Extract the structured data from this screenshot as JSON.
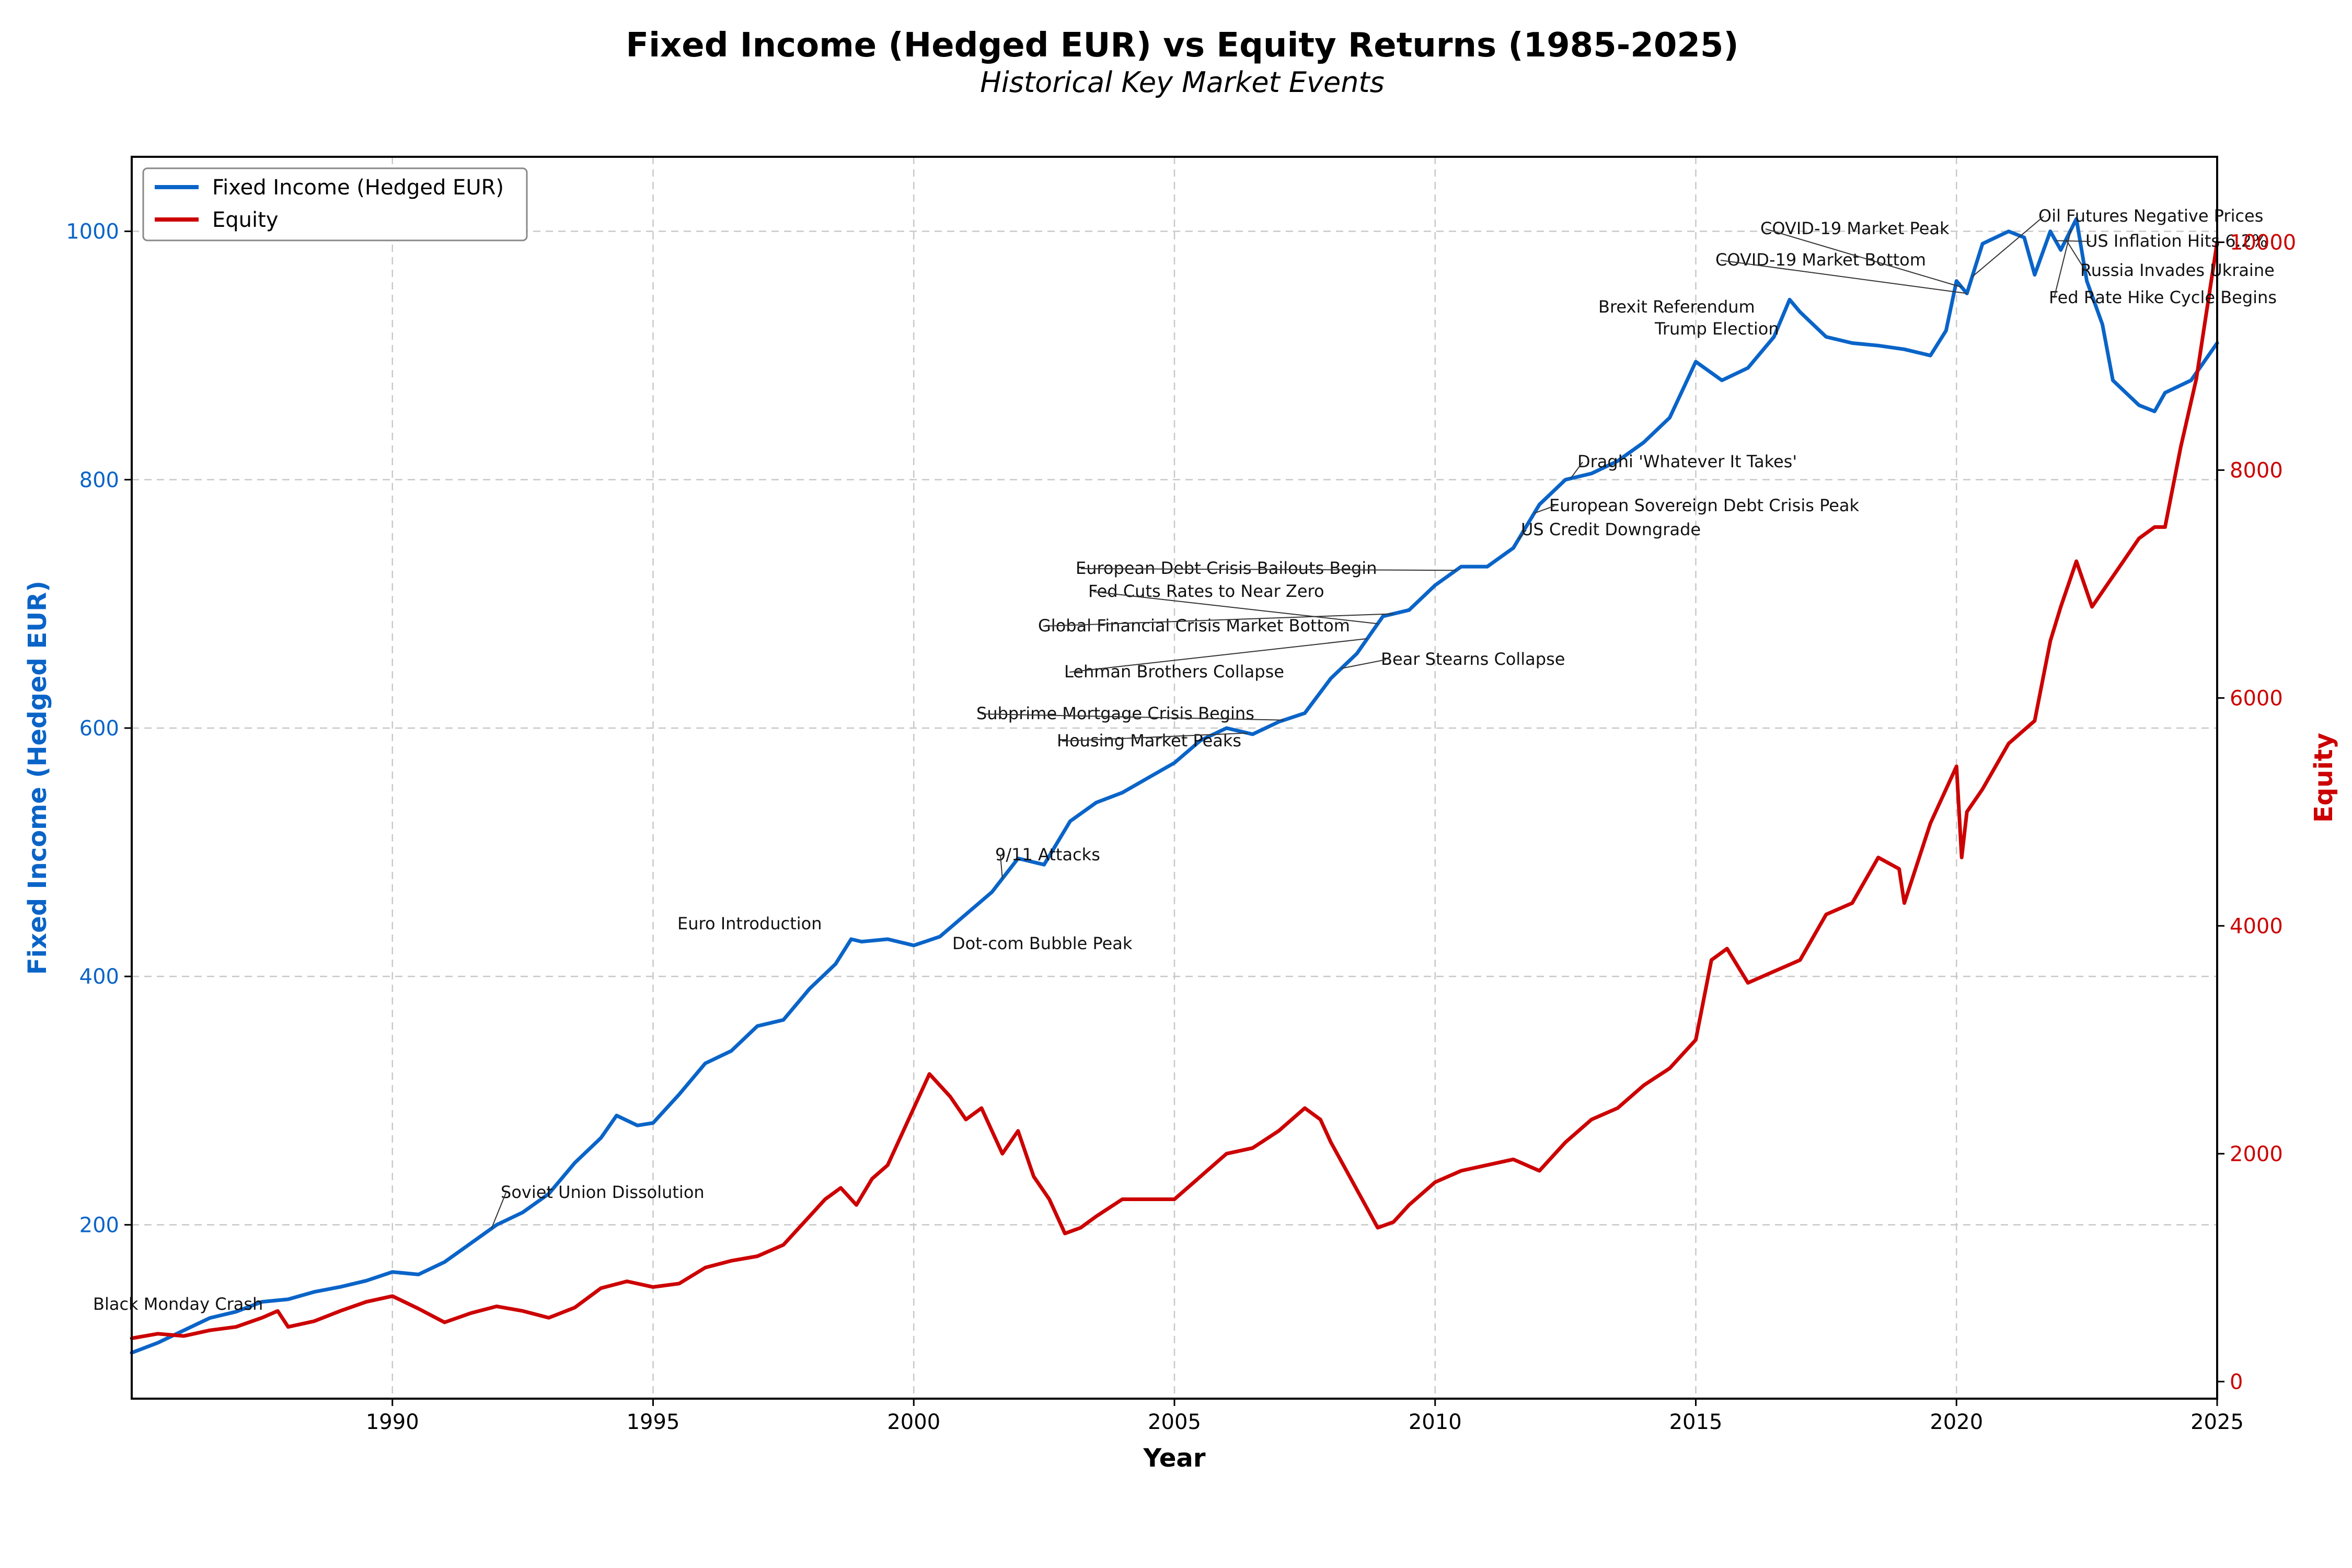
{
  "chart_data": {
    "type": "line",
    "title": "Fixed Income (Hedged EUR) vs Equity Returns (1985-2025)",
    "subtitle": "Historical Key Market Events",
    "xlabel": "Year",
    "ylabel_left": "Fixed Income (Hedged EUR)",
    "ylabel_right": "Equity",
    "xlim": [
      1985,
      2025
    ],
    "ylim_left": [
      60,
      1060
    ],
    "ylim_right": [
      -150,
      10750
    ],
    "x_ticks": [
      "1990",
      "1995",
      "2000",
      "2005",
      "2010",
      "2015",
      "2020",
      "2025"
    ],
    "y_ticks_left": [
      "200",
      "400",
      "600",
      "800",
      "1000"
    ],
    "y_ticks_right": [
      "0",
      "2000",
      "4000",
      "6000",
      "8000",
      "10000"
    ],
    "grid": true,
    "legend_position": "top-left",
    "colors": {
      "fixed_income": "#0a64c8",
      "equity": "#cc0000"
    },
    "series": [
      {
        "name": "Fixed Income (Hedged EUR)",
        "axis": "left",
        "x": [
          1985.0,
          1985.5,
          1986.0,
          1986.5,
          1987.0,
          1987.5,
          1988.0,
          1988.5,
          1989.0,
          1989.5,
          1990.0,
          1990.5,
          1991.0,
          1991.5,
          1992.0,
          1992.5,
          1993.0,
          1993.5,
          1994.0,
          1994.3,
          1994.7,
          1995.0,
          1995.5,
          1996.0,
          1996.5,
          1997.0,
          1997.5,
          1998.0,
          1998.5,
          1998.8,
          1999.0,
          1999.5,
          2000.0,
          2000.5,
          2001.0,
          2001.5,
          2002.0,
          2002.5,
          2003.0,
          2003.5,
          2004.0,
          2004.5,
          2005.0,
          2005.5,
          2006.0,
          2006.5,
          2007.0,
          2007.5,
          2008.0,
          2008.5,
          2009.0,
          2009.5,
          2010.0,
          2010.5,
          2011.0,
          2011.5,
          2012.0,
          2012.5,
          2013.0,
          2013.5,
          2014.0,
          2014.5,
          2015.0,
          2015.5,
          2016.0,
          2016.5,
          2016.8,
          2017.0,
          2017.5,
          2018.0,
          2018.5,
          2019.0,
          2019.5,
          2019.8,
          2020.0,
          2020.2,
          2020.5,
          2021.0,
          2021.3,
          2021.5,
          2021.8,
          2022.0,
          2022.3,
          2022.5,
          2022.8,
          2023.0,
          2023.5,
          2023.8,
          2024.0,
          2024.5,
          2025.0
        ],
        "values": [
          97,
          105,
          115,
          125,
          130,
          138,
          140,
          146,
          150,
          155,
          162,
          160,
          170,
          185,
          200,
          210,
          225,
          250,
          270,
          288,
          280,
          282,
          305,
          330,
          340,
          360,
          365,
          390,
          410,
          430,
          428,
          430,
          425,
          432,
          450,
          468,
          495,
          490,
          525,
          540,
          548,
          560,
          572,
          590,
          600,
          595,
          605,
          612,
          640,
          660,
          690,
          695,
          715,
          730,
          730,
          745,
          780,
          800,
          805,
          815,
          830,
          850,
          895,
          880,
          890,
          915,
          945,
          935,
          915,
          910,
          908,
          905,
          900,
          920,
          960,
          950,
          990,
          1000,
          995,
          965,
          1000,
          985,
          1010,
          960,
          925,
          880,
          860,
          855,
          870,
          880,
          910
        ]
      },
      {
        "name": "Equity",
        "axis": "right",
        "x": [
          1985.0,
          1985.5,
          1986.0,
          1986.5,
          1987.0,
          1987.5,
          1987.8,
          1988.0,
          1988.5,
          1989.0,
          1989.5,
          1990.0,
          1990.5,
          1991.0,
          1991.5,
          1992.0,
          1992.5,
          1993.0,
          1993.5,
          1994.0,
          1994.5,
          1995.0,
          1995.5,
          1996.0,
          1996.5,
          1997.0,
          1997.5,
          1998.0,
          1998.3,
          1998.6,
          1998.9,
          1999.2,
          1999.5,
          2000.0,
          2000.3,
          2000.7,
          2001.0,
          2001.3,
          2001.7,
          2002.0,
          2002.3,
          2002.6,
          2002.9,
          2003.2,
          2003.5,
          2004.0,
          2004.5,
          2005.0,
          2005.5,
          2006.0,
          2006.5,
          2007.0,
          2007.5,
          2007.8,
          2008.0,
          2008.3,
          2008.6,
          2008.9,
          2009.2,
          2009.5,
          2010.0,
          2010.5,
          2011.0,
          2011.5,
          2012.0,
          2012.5,
          2013.0,
          2013.5,
          2014.0,
          2014.5,
          2015.0,
          2015.3,
          2015.6,
          2016.0,
          2016.5,
          2017.0,
          2017.5,
          2018.0,
          2018.5,
          2018.9,
          2019.0,
          2019.5,
          2020.0,
          2020.1,
          2020.2,
          2020.5,
          2021.0,
          2021.5,
          2021.8,
          2022.0,
          2022.3,
          2022.6,
          2022.9,
          2023.2,
          2023.5,
          2023.8,
          2024.0,
          2024.3,
          2024.6,
          2025.0
        ],
        "values": [
          380,
          420,
          400,
          450,
          480,
          560,
          620,
          480,
          530,
          620,
          700,
          750,
          640,
          520,
          600,
          660,
          620,
          560,
          650,
          820,
          880,
          830,
          860,
          1000,
          1060,
          1100,
          1200,
          1450,
          1600,
          1700,
          1550,
          1780,
          1900,
          2400,
          2700,
          2500,
          2300,
          2400,
          2000,
          2200,
          1800,
          1600,
          1300,
          1350,
          1450,
          1600,
          1600,
          1600,
          1800,
          2000,
          2050,
          2200,
          2400,
          2300,
          2100,
          1850,
          1600,
          1350,
          1400,
          1550,
          1750,
          1850,
          1900,
          1950,
          1850,
          2100,
          2300,
          2400,
          2600,
          2750,
          3000,
          3700,
          3800,
          3500,
          3600,
          3700,
          4100,
          4200,
          4600,
          4500,
          4200,
          4900,
          5400,
          4600,
          5000,
          5200,
          5600,
          5800,
          6500,
          6800,
          7200,
          6800,
          7000,
          7200,
          7400,
          7500,
          7500,
          8200,
          8800,
          10000
        ]
      }
    ],
    "annotations": [
      {
        "label": "Black Monday Crash",
        "x": 1987.8
      },
      {
        "label": "Soviet Union Dissolution",
        "x": 1991.9
      },
      {
        "label": "Euro Introduction",
        "x": 1999.0
      },
      {
        "label": "Dot-com Bubble Peak",
        "x": 2000.2
      },
      {
        "label": "9/11 Attacks",
        "x": 2001.7
      },
      {
        "label": "Housing Market Peaks",
        "x": 2006.4
      },
      {
        "label": "Subprime Mortgage Crisis Begins",
        "x": 2007.1
      },
      {
        "label": "Lehman Brothers Collapse",
        "x": 2008.7
      },
      {
        "label": "Bear Stearns Collapse",
        "x": 2008.2
      },
      {
        "label": "Global Financial Crisis Market Bottom",
        "x": 2009.2
      },
      {
        "label": "Fed Cuts Rates to Near Zero",
        "x": 2008.9
      },
      {
        "label": "European Debt Crisis Bailouts Begin",
        "x": 2010.4
      },
      {
        "label": "US Credit Downgrade",
        "x": 2011.6
      },
      {
        "label": "European Sovereign Debt Crisis Peak",
        "x": 2011.9
      },
      {
        "label": "Draghi 'Whatever It Takes'",
        "x": 2012.6
      },
      {
        "label": "Brexit Referendum",
        "x": 2016.5
      },
      {
        "label": "Trump Election",
        "x": 2016.9
      },
      {
        "label": "COVID-19 Market Bottom",
        "x": 2020.2
      },
      {
        "label": "COVID-19 Market Peak",
        "x": 2020.1
      },
      {
        "label": "Oil Futures Negative Prices",
        "x": 2020.3
      },
      {
        "label": "US Inflation Hits 6.2%",
        "x": 2021.9
      },
      {
        "label": "Russia Invades Ukraine",
        "x": 2022.1
      },
      {
        "label": "Fed Rate Hike Cycle Begins",
        "x": 2022.2
      }
    ]
  }
}
